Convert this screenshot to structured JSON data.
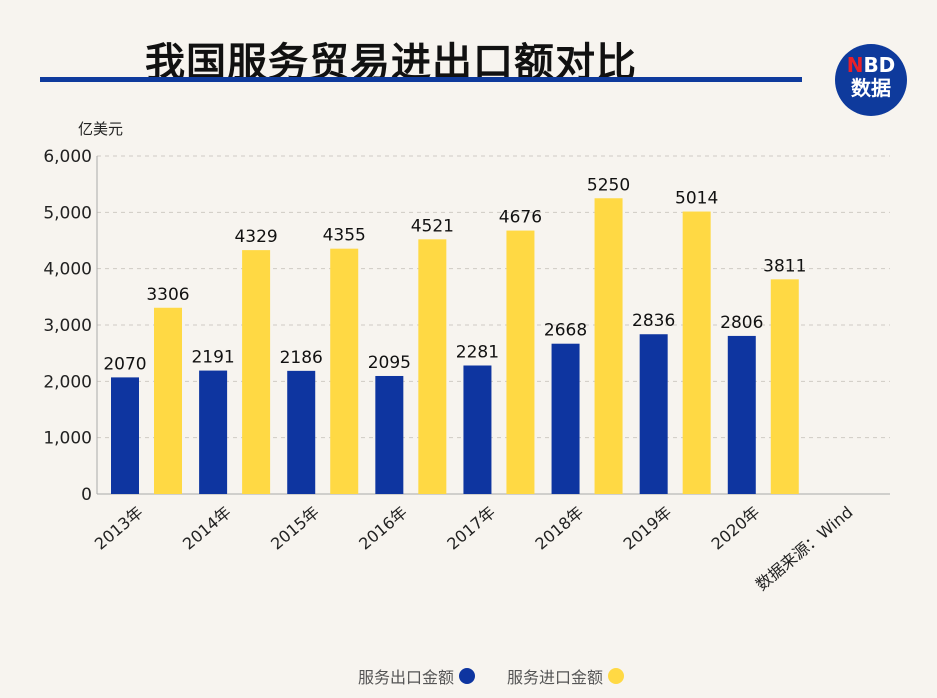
{
  "title": "我国服务贸易进出口额对比",
  "logo": {
    "line1_accent": "N",
    "line1_rest": "BD",
    "line2": "数据"
  },
  "chart_data": {
    "type": "bar",
    "title": "我国服务贸易进出口额对比",
    "ylabel": "亿美元",
    "ylim": [
      0,
      6000
    ],
    "yticks": [
      "0",
      "1,000",
      "2,000",
      "3,000",
      "4,000",
      "5,000",
      "6,000"
    ],
    "ytick_values": [
      0,
      1000,
      2000,
      3000,
      4000,
      5000,
      6000
    ],
    "grid": true,
    "categories": [
      "2013年",
      "2014年",
      "2015年",
      "2016年",
      "2017年",
      "2018年",
      "2019年",
      "2020年"
    ],
    "source_label": "数据来源：Wind",
    "legend_placement": "bottom",
    "series": [
      {
        "name": "服务出口金额",
        "color": "#0e35a0",
        "values": [
          2070,
          2191,
          2186,
          2095,
          2281,
          2668,
          2836,
          2806
        ]
      },
      {
        "name": "服务进口金额",
        "color": "#ffd944",
        "values": [
          3306,
          4329,
          4355,
          4521,
          4676,
          5250,
          5014,
          3811
        ]
      }
    ]
  }
}
